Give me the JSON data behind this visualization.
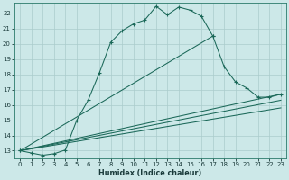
{
  "xlabel": "Humidex (Indice chaleur)",
  "xlim": [
    -0.5,
    23.5
  ],
  "ylim": [
    12.5,
    22.7
  ],
  "xticks": [
    0,
    1,
    2,
    3,
    4,
    5,
    6,
    7,
    8,
    9,
    10,
    11,
    12,
    13,
    14,
    15,
    16,
    17,
    18,
    19,
    20,
    21,
    22,
    23
  ],
  "yticks": [
    13,
    14,
    15,
    16,
    17,
    18,
    19,
    20,
    21,
    22
  ],
  "bg_color": "#cce8e8",
  "grid_color": "#aacccc",
  "line_color": "#1a6858",
  "curve1_x": [
    0,
    1,
    2,
    3,
    4,
    5,
    6,
    7,
    8,
    9,
    10,
    11,
    12,
    13,
    14,
    15,
    16,
    17
  ],
  "curve1_y": [
    13.0,
    12.85,
    12.7,
    12.8,
    13.05,
    15.0,
    16.3,
    18.1,
    20.1,
    20.85,
    21.3,
    21.55,
    22.45,
    21.9,
    22.4,
    22.2,
    21.8,
    20.5
  ],
  "curve2_x": [
    0,
    17,
    18,
    19,
    20,
    21,
    22,
    23
  ],
  "curve2_y": [
    13.0,
    20.5,
    18.5,
    17.5,
    17.1,
    16.5,
    16.5,
    16.7
  ],
  "line3_x": [
    0,
    23
  ],
  "line3_y": [
    13.0,
    15.8
  ],
  "line4_x": [
    0,
    23
  ],
  "line4_y": [
    13.0,
    16.3
  ],
  "line5_x": [
    0,
    23
  ],
  "line5_y": [
    13.0,
    16.7
  ]
}
